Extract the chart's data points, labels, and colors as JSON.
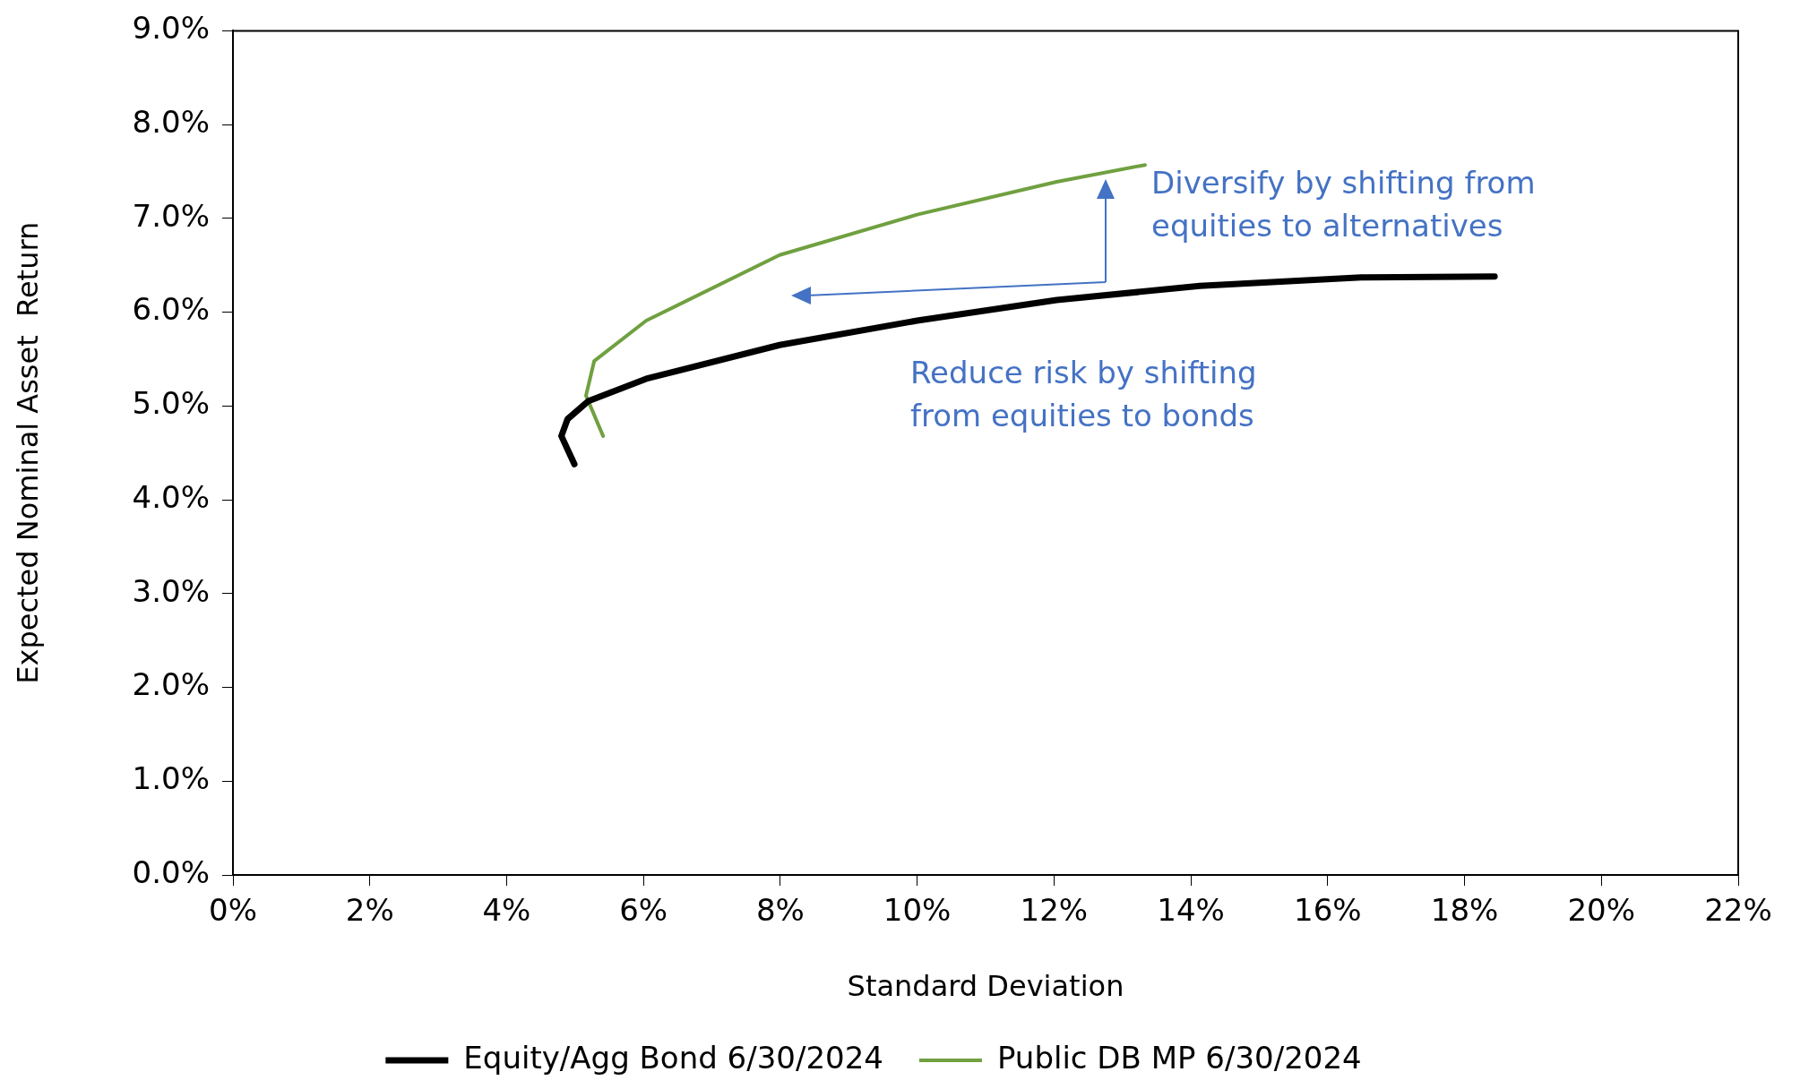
{
  "chart_data": {
    "type": "line",
    "xlabel": "Standard Deviation",
    "ylabel": "Expected Nominal Asset  Return",
    "xlim": [
      0,
      22
    ],
    "xticks": [
      {
        "value": 0,
        "label": "0%"
      },
      {
        "value": 2,
        "label": "2%"
      },
      {
        "value": 4,
        "label": "4%"
      },
      {
        "value": 6,
        "label": "6%"
      },
      {
        "value": 8,
        "label": "8%"
      },
      {
        "value": 10,
        "label": "10%"
      },
      {
        "value": 12,
        "label": "12%"
      },
      {
        "value": 14,
        "label": "14%"
      },
      {
        "value": 16,
        "label": "16%"
      },
      {
        "value": 18,
        "label": "18%"
      },
      {
        "value": 20,
        "label": "20%"
      },
      {
        "value": 22,
        "label": "22%"
      }
    ],
    "ylim": [
      0,
      9
    ],
    "yticks": [
      {
        "value": 0,
        "label": "0.0%"
      },
      {
        "value": 1,
        "label": "1.0%"
      },
      {
        "value": 2,
        "label": "2.0%"
      },
      {
        "value": 3,
        "label": "3.0%"
      },
      {
        "value": 4,
        "label": "4.0%"
      },
      {
        "value": 5,
        "label": "5.0%"
      },
      {
        "value": 6,
        "label": "6.0%"
      },
      {
        "value": 7,
        "label": "7.0%"
      },
      {
        "value": 8,
        "label": "8.0%"
      },
      {
        "value": 9,
        "label": "9.0%"
      }
    ],
    "series": [
      {
        "name": "Equity/Agg Bond 6/30/2024",
        "color": "#000000",
        "x": [
          4.99,
          4.8,
          4.89,
          5.19,
          6.04,
          7.99,
          10.0,
          12.04,
          14.13,
          16.49,
          18.44
        ],
        "values": [
          4.38,
          4.68,
          4.86,
          5.05,
          5.29,
          5.65,
          5.91,
          6.13,
          6.28,
          6.37,
          6.38
        ]
      },
      {
        "name": "Public DB MP 6/30/2024",
        "color": "#70a040",
        "x": [
          5.41,
          5.16,
          5.28,
          6.04,
          7.99,
          10.0,
          12.04,
          13.33
        ],
        "values": [
          4.68,
          5.11,
          5.48,
          5.91,
          6.61,
          7.04,
          7.39,
          7.57
        ]
      }
    ],
    "annotations": [
      "Diversify by shifting from\nequities to alternatives",
      "Reduce risk by shifting\nfrom equities to bonds"
    ],
    "legend": "bottom",
    "grid": false,
    "marker": "none",
    "line_style": "solid"
  }
}
